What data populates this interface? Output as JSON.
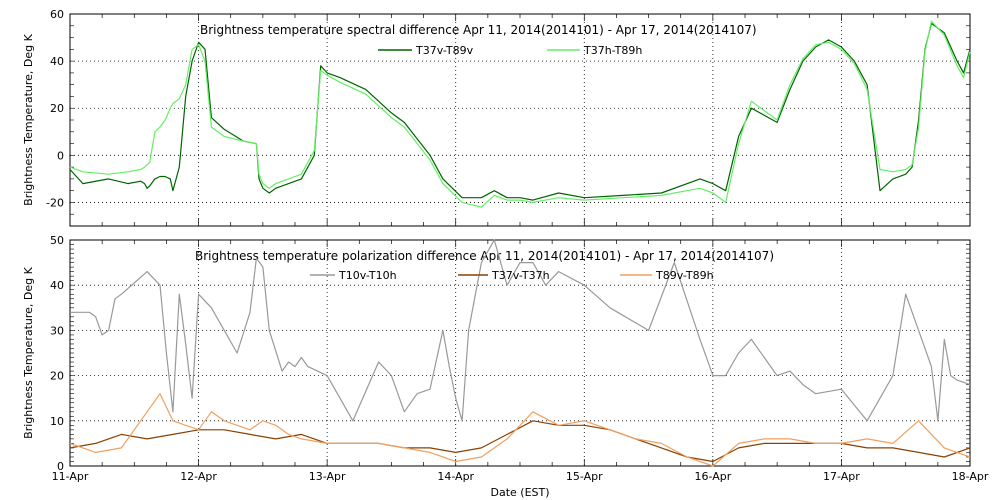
{
  "chart_data": [
    {
      "type": "line",
      "title": "Brightness temperature spectral difference     Apr 11, 2014(2014101) - Apr 17, 2014(2014107)",
      "ylabel": "Brightness Temperature, Deg K",
      "xlim": [
        0,
        7
      ],
      "ylim": [
        -30,
        60
      ],
      "yticks": [
        -20,
        0,
        20,
        40,
        60
      ],
      "grid": true,
      "legend_position": "top-center",
      "series": [
        {
          "name": "T37v-T89v",
          "color": "#006400",
          "x": [
            0,
            0.1,
            0.3,
            0.45,
            0.55,
            0.58,
            0.6,
            0.62,
            0.66,
            0.7,
            0.74,
            0.78,
            0.8,
            0.85,
            0.9,
            0.95,
            1.0,
            1.05,
            1.1,
            1.2,
            1.35,
            1.45,
            1.47,
            1.5,
            1.55,
            1.6,
            1.7,
            1.8,
            1.9,
            1.95,
            2.0,
            2.1,
            2.3,
            2.5,
            2.6,
            2.8,
            2.9,
            3.05,
            3.2,
            3.3,
            3.4,
            3.5,
            3.6,
            3.8,
            4.0,
            4.3,
            4.6,
            4.9,
            5.0,
            5.1,
            5.2,
            5.3,
            5.5,
            5.6,
            5.7,
            5.8,
            5.9,
            6.0,
            6.1,
            6.2,
            6.3,
            6.4,
            6.5,
            6.55,
            6.6,
            6.65,
            6.7,
            6.8,
            6.9,
            6.95,
            7.0
          ],
          "y": [
            -6,
            -12,
            -10,
            -12,
            -11,
            -12,
            -14,
            -13,
            -10,
            -9,
            -9,
            -10,
            -15,
            -5,
            25,
            40,
            48,
            45,
            16,
            11,
            6,
            5,
            -10,
            -14,
            -16,
            -14,
            -12,
            -10,
            0,
            38,
            35,
            33,
            28,
            18,
            14,
            0,
            -10,
            -18,
            -18,
            -15,
            -18,
            -18,
            -19,
            -16,
            -18,
            -17,
            -16,
            -10,
            -12,
            -15,
            8,
            20,
            14,
            28,
            40,
            46,
            49,
            46,
            40,
            30,
            -15,
            -10,
            -8,
            -5,
            15,
            45,
            56,
            52,
            40,
            35,
            45
          ],
          "legend_x": [
            378,
            412
          ],
          "legend_y": 50
        },
        {
          "name": "T37h-T89h",
          "color": "#66ee66",
          "x": [
            0,
            0.1,
            0.3,
            0.45,
            0.55,
            0.58,
            0.6,
            0.62,
            0.66,
            0.7,
            0.74,
            0.78,
            0.8,
            0.85,
            0.9,
            0.95,
            1.0,
            1.05,
            1.1,
            1.2,
            1.35,
            1.45,
            1.47,
            1.5,
            1.55,
            1.6,
            1.7,
            1.8,
            1.9,
            1.95,
            2.0,
            2.1,
            2.3,
            2.5,
            2.6,
            2.8,
            2.9,
            3.05,
            3.2,
            3.3,
            3.4,
            3.5,
            3.6,
            3.8,
            4.0,
            4.3,
            4.6,
            4.9,
            5.0,
            5.1,
            5.2,
            5.3,
            5.5,
            5.6,
            5.7,
            5.8,
            5.9,
            6.0,
            6.1,
            6.2,
            6.3,
            6.4,
            6.5,
            6.55,
            6.6,
            6.65,
            6.7,
            6.8,
            6.9,
            6.95,
            7.0
          ],
          "y": [
            -5,
            -7,
            -8,
            -7,
            -6,
            -5,
            -4,
            -3,
            10,
            12,
            15,
            20,
            22,
            24,
            30,
            45,
            47,
            40,
            12,
            8,
            6,
            5,
            -8,
            -12,
            -14,
            -12,
            -10,
            -8,
            2,
            36,
            34,
            31,
            26,
            16,
            12,
            -2,
            -12,
            -20,
            -22,
            -17,
            -19,
            -19,
            -20,
            -18,
            -19,
            -18,
            -17,
            -14,
            -16,
            -20,
            5,
            23,
            15,
            30,
            41,
            47,
            48,
            45,
            39,
            28,
            -6,
            -7,
            -6,
            -4,
            12,
            44,
            57,
            51,
            38,
            33,
            44
          ],
          "legend_x": [
            547,
            580
          ],
          "legend_y": 50
        }
      ]
    },
    {
      "type": "line",
      "title": "Brightness temperature polarization difference     Apr 11, 2014(2014101) - Apr 17, 2014(2014107)",
      "ylabel": "Brightness Temperature, Deg K",
      "xlabel": "Date (EST)",
      "x_tick_labels": [
        "11-Apr",
        "12-Apr",
        "13-Apr",
        "14-Apr",
        "15-Apr",
        "16-Apr",
        "17-Apr",
        "18-Apr"
      ],
      "xlim": [
        0,
        7
      ],
      "ylim": [
        0,
        50
      ],
      "yticks": [
        0,
        10,
        20,
        30,
        40,
        50
      ],
      "grid": true,
      "legend_position": "top-center",
      "series": [
        {
          "name": "T10v-T10h",
          "color": "#999999",
          "x": [
            0,
            0.15,
            0.2,
            0.25,
            0.3,
            0.35,
            0.4,
            0.6,
            0.7,
            0.75,
            0.8,
            0.85,
            0.9,
            0.95,
            1.0,
            1.1,
            1.2,
            1.3,
            1.4,
            1.45,
            1.5,
            1.55,
            1.65,
            1.7,
            1.75,
            1.8,
            1.85,
            2.0,
            2.2,
            2.4,
            2.5,
            2.6,
            2.7,
            2.8,
            2.9,
            2.95,
            3.0,
            3.05,
            3.1,
            3.2,
            3.3,
            3.4,
            3.5,
            3.6,
            3.7,
            3.8,
            4.0,
            4.2,
            4.5,
            4.7,
            4.9,
            5.0,
            5.1,
            5.2,
            5.3,
            5.5,
            5.6,
            5.7,
            5.8,
            6.0,
            6.2,
            6.4,
            6.5,
            6.6,
            6.7,
            6.75,
            6.8,
            6.85,
            6.9,
            7.0
          ],
          "y": [
            34,
            34,
            33,
            29,
            30,
            37,
            38,
            43,
            40,
            25,
            12,
            38,
            27,
            15,
            38,
            35,
            30,
            25,
            34,
            46,
            44,
            30,
            21,
            23,
            22,
            24,
            22,
            20,
            10,
            23,
            20,
            12,
            16,
            17,
            30,
            22,
            15,
            10,
            30,
            45,
            50,
            40,
            45,
            45,
            40,
            43,
            40,
            35,
            30,
            45,
            28,
            20,
            20,
            25,
            28,
            20,
            21,
            18,
            16,
            17,
            10,
            20,
            38,
            30,
            22,
            10,
            28,
            20,
            19,
            18
          ],
          "legend_x": [
            310,
            335
          ],
          "legend_y": 275
        },
        {
          "name": "T37v-T37h",
          "color": "#8b4000",
          "x": [
            0,
            0.2,
            0.4,
            0.6,
            0.8,
            1.0,
            1.2,
            1.4,
            1.6,
            1.8,
            2.0,
            2.2,
            2.4,
            2.6,
            2.8,
            3.0,
            3.2,
            3.4,
            3.6,
            3.8,
            4.0,
            4.2,
            4.4,
            4.6,
            4.8,
            5.0,
            5.2,
            5.4,
            5.6,
            5.8,
            6.0,
            6.2,
            6.4,
            6.6,
            6.8,
            7.0
          ],
          "y": [
            4,
            5,
            7,
            6,
            7,
            8,
            8,
            7,
            6,
            7,
            5,
            5,
            5,
            4,
            4,
            3,
            4,
            7,
            10,
            9,
            9,
            8,
            6,
            4,
            2,
            1,
            4,
            5,
            5,
            5,
            5,
            4,
            4,
            3,
            2,
            4
          ],
          "legend_x": [
            458,
            488
          ],
          "legend_y": 275
        },
        {
          "name": "T89v-T89h",
          "color": "#f0a060",
          "x": [
            0,
            0.2,
            0.4,
            0.5,
            0.6,
            0.7,
            0.8,
            0.9,
            1.0,
            1.1,
            1.2,
            1.3,
            1.4,
            1.5,
            1.6,
            1.7,
            1.8,
            2.0,
            2.2,
            2.4,
            2.6,
            2.8,
            3.0,
            3.2,
            3.4,
            3.6,
            3.8,
            4.0,
            4.2,
            4.4,
            4.6,
            4.8,
            5.0,
            5.2,
            5.4,
            5.6,
            5.8,
            6.0,
            6.2,
            6.4,
            6.6,
            6.8,
            6.9,
            7.0
          ],
          "y": [
            5,
            3,
            4,
            8,
            12,
            16,
            10,
            9,
            8,
            12,
            10,
            9,
            8,
            10,
            9,
            7,
            6,
            5,
            5,
            5,
            4,
            3,
            1,
            2,
            6,
            12,
            9,
            10,
            8,
            6,
            5,
            2,
            0,
            5,
            6,
            6,
            5,
            5,
            6,
            5,
            10,
            4,
            3,
            2
          ],
          "legend_x": [
            620,
            652
          ],
          "legend_y": 275
        }
      ]
    }
  ]
}
